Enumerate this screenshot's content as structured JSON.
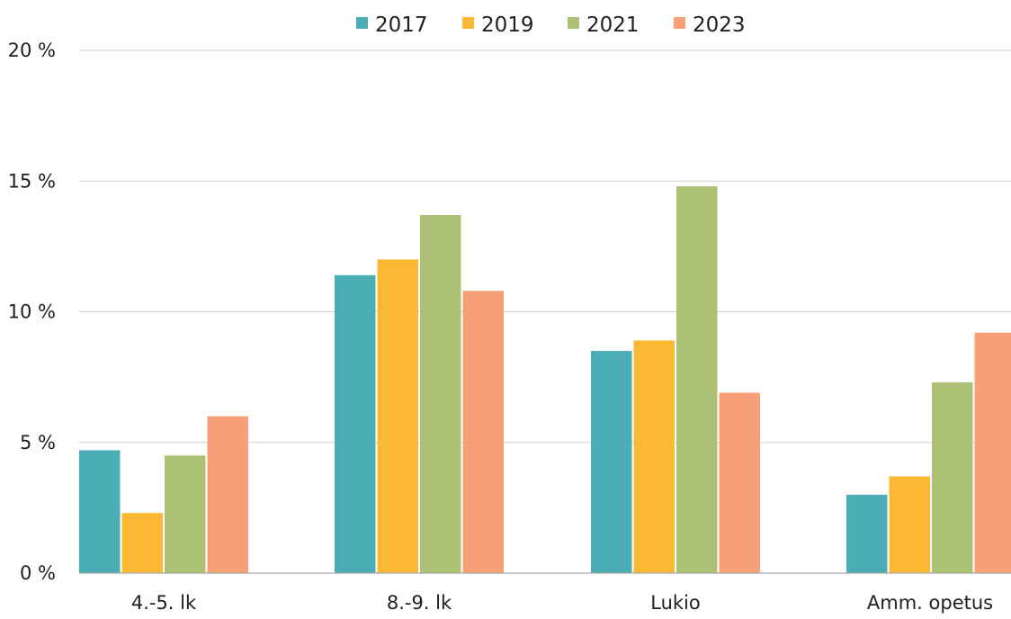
{
  "chart_data": {
    "type": "bar",
    "title": "",
    "xlabel": "",
    "ylabel": "",
    "categories": [
      "4.-5. lk",
      "8.-9. lk",
      "Lukio",
      "Amm. opetus"
    ],
    "series": [
      {
        "name": "2017",
        "color": "#4badb5",
        "values": [
          4.7,
          11.4,
          8.5,
          3.0
        ]
      },
      {
        "name": "2019",
        "color": "#fbb833",
        "values": [
          2.3,
          12.0,
          8.9,
          3.7
        ]
      },
      {
        "name": "2021",
        "color": "#adc176",
        "values": [
          4.5,
          13.7,
          14.8,
          7.3
        ]
      },
      {
        "name": "2023",
        "color": "#f7a077",
        "values": [
          6.0,
          10.8,
          6.9,
          9.2
        ]
      }
    ],
    "ylim": [
      0,
      20
    ],
    "yticks": [
      0,
      5,
      10,
      15,
      20
    ],
    "ytick_labels": [
      "0 %",
      "5 %",
      "10 %",
      "15 %",
      "20 %"
    ],
    "grid": true,
    "legend_position": "top-center"
  }
}
